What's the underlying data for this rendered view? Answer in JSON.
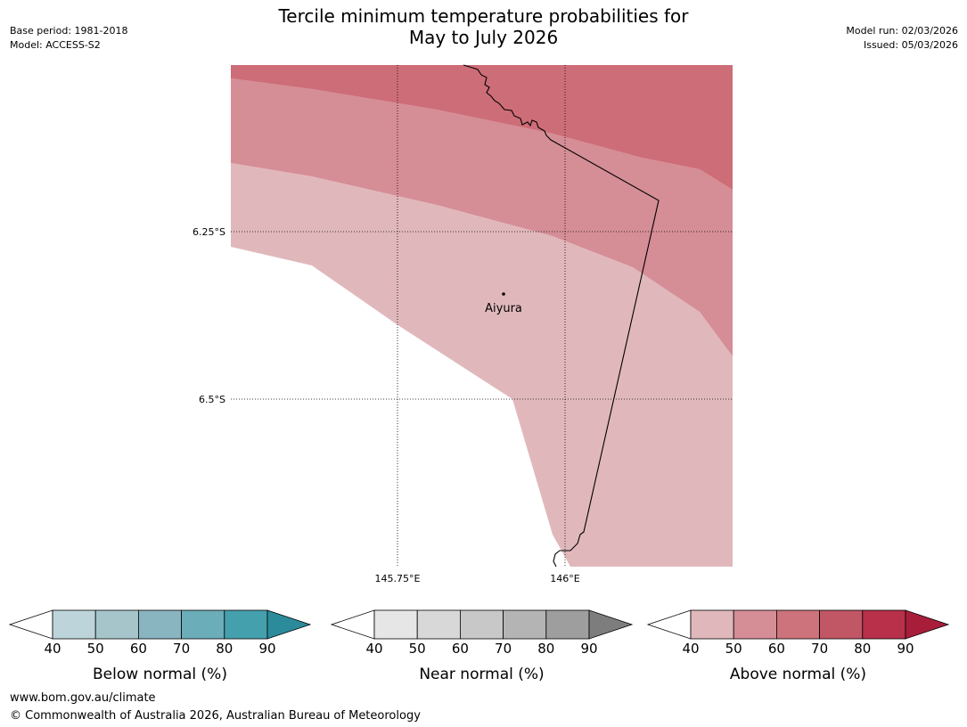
{
  "header": {
    "title_line1": "Tercile minimum temperature probabilities for",
    "title_line2": "May to July 2026",
    "base_period": "Base period: 1981-2018",
    "model": "Model: ACCESS-S2",
    "model_run": "Model run: 02/03/2026",
    "issued": "Issued: 05/03/2026"
  },
  "map": {
    "place_label": "Aiyura",
    "lat_labels": [
      "6.25°S",
      "6.5°S"
    ],
    "lon_labels": [
      "145.75°E",
      "146°E"
    ]
  },
  "legends": [
    {
      "title": "Below normal (%)",
      "ticks": [
        "40",
        "50",
        "60",
        "70",
        "80",
        "90"
      ],
      "colors": [
        "#bdd4da",
        "#a6c5cb",
        "#89b5c0",
        "#6badb9",
        "#45a0ae",
        "#2b8b9b"
      ]
    },
    {
      "title": "Near normal (%)",
      "ticks": [
        "40",
        "50",
        "60",
        "70",
        "80",
        "90"
      ],
      "colors": [
        "#e6e6e6",
        "#d8d8d8",
        "#c8c8c8",
        "#b4b4b4",
        "#9e9e9e",
        "#7d7d7d"
      ]
    },
    {
      "title": "Above normal (%)",
      "ticks": [
        "40",
        "50",
        "60",
        "70",
        "80",
        "90"
      ],
      "colors": [
        "#e0b8bc",
        "#d58d96",
        "#cd737b",
        "#c15664",
        "#b8304a",
        "#a81e3a"
      ]
    }
  ],
  "footer": {
    "url": "www.bom.gov.au/climate",
    "copyright": "© Commonwealth of Australia 2026, Australian Bureau of Meteorology"
  }
}
